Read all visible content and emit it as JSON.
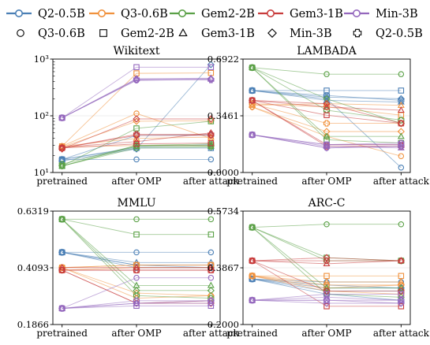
{
  "legend": {
    "series": [
      {
        "name": "Q2-0.5B",
        "color": "#4a7fb5"
      },
      {
        "name": "Q3-0.6B",
        "color": "#f0913c"
      },
      {
        "name": "Gem2-2B",
        "color": "#5aa046"
      },
      {
        "name": "Gem3-1B",
        "color": "#c83c3c"
      },
      {
        "name": "Min-3B",
        "color": "#9467bd"
      }
    ],
    "markers": [
      {
        "name": "Q3-0.6B",
        "shape": "circle"
      },
      {
        "name": "Gem2-2B",
        "shape": "square"
      },
      {
        "name": "Gem3-1B",
        "shape": "triangle"
      },
      {
        "name": "Min-3B",
        "shape": "diamond"
      },
      {
        "name": "Q2-0.5B",
        "shape": "plus"
      }
    ]
  },
  "chart_data": [
    {
      "type": "line",
      "title": "Wikitext",
      "x": [
        "pretrained",
        "after OMP",
        "after attack"
      ],
      "yscale": "log",
      "ylim": [
        10,
        1000
      ],
      "yticks": [
        "10¹",
        "10²",
        "10³"
      ],
      "ytick_values": [
        10,
        100,
        1000
      ],
      "series": [
        {
          "color": "#4a7fb5",
          "values": [
            17,
            17,
            17
          ]
        },
        {
          "color": "#4a7fb5",
          "values": [
            17,
            27,
            27
          ]
        },
        {
          "color": "#4a7fb5",
          "values": [
            17,
            28,
            31
          ]
        },
        {
          "color": "#4a7fb5",
          "values": [
            16,
            26,
            800
          ]
        },
        {
          "color": "#4a7fb5",
          "values": [
            17,
            45,
            46
          ]
        },
        {
          "color": "#f0913c",
          "values": [
            29,
            110,
            40
          ]
        },
        {
          "color": "#f0913c",
          "values": [
            29,
            560,
            570
          ]
        },
        {
          "color": "#f0913c",
          "values": [
            29,
            40,
            42
          ]
        },
        {
          "color": "#f0913c",
          "values": [
            28,
            80,
            82
          ]
        },
        {
          "color": "#f0913c",
          "values": [
            28,
            30,
            30
          ]
        },
        {
          "color": "#5aa046",
          "values": [
            13,
            27,
            28
          ]
        },
        {
          "color": "#5aa046",
          "values": [
            13,
            60,
            80
          ]
        },
        {
          "color": "#5aa046",
          "values": [
            13,
            29,
            29
          ]
        },
        {
          "color": "#5aa046",
          "values": [
            13,
            30,
            30
          ]
        },
        {
          "color": "#5aa046",
          "values": [
            14,
            30,
            32
          ]
        },
        {
          "color": "#c83c3c",
          "values": [
            27,
            45,
            45
          ]
        },
        {
          "color": "#c83c3c",
          "values": [
            27,
            32,
            33
          ]
        },
        {
          "color": "#c83c3c",
          "values": [
            28,
            35,
            50
          ]
        },
        {
          "color": "#c83c3c",
          "values": [
            26,
            88,
            88
          ]
        },
        {
          "color": "#c83c3c",
          "values": [
            27,
            47,
            47
          ]
        },
        {
          "color": "#9467bd",
          "values": [
            92,
            420,
            440
          ]
        },
        {
          "color": "#9467bd",
          "values": [
            92,
            720,
            720
          ]
        },
        {
          "color": "#9467bd",
          "values": [
            92,
            450,
            460
          ]
        },
        {
          "color": "#9467bd",
          "values": [
            92,
            430,
            450
          ]
        },
        {
          "color": "#9467bd",
          "values": [
            92,
            440,
            430
          ]
        }
      ]
    },
    {
      "type": "line",
      "title": "LAMBADA",
      "x": [
        "pretrained",
        "after OMP",
        "after attack"
      ],
      "ylim": [
        0.0,
        0.6922
      ],
      "yticks": [
        "0.0000",
        "0.3461",
        "0.6922"
      ],
      "ytick_values": [
        0.0,
        0.3461,
        0.6922
      ],
      "series": [
        {
          "color": "#4a7fb5",
          "values": [
            0.5,
            0.45,
            0.03
          ]
        },
        {
          "color": "#4a7fb5",
          "values": [
            0.5,
            0.5,
            0.5
          ]
        },
        {
          "color": "#4a7fb5",
          "values": [
            0.5,
            0.44,
            0.43
          ]
        },
        {
          "color": "#4a7fb5",
          "values": [
            0.5,
            0.46,
            0.45
          ]
        },
        {
          "color": "#4a7fb5",
          "values": [
            0.5,
            0.47,
            0.44
          ]
        },
        {
          "color": "#f0913c",
          "values": [
            0.4,
            0.22,
            0.1
          ]
        },
        {
          "color": "#f0913c",
          "values": [
            0.42,
            0.4,
            0.35
          ]
        },
        {
          "color": "#f0913c",
          "values": [
            0.41,
            0.42,
            0.41
          ]
        },
        {
          "color": "#f0913c",
          "values": [
            0.4,
            0.25,
            0.25
          ]
        },
        {
          "color": "#f0913c",
          "values": [
            0.42,
            0.3,
            0.3
          ]
        },
        {
          "color": "#5aa046",
          "values": [
            0.64,
            0.6,
            0.6
          ]
        },
        {
          "color": "#5aa046",
          "values": [
            0.64,
            0.2,
            0.18
          ]
        },
        {
          "color": "#5aa046",
          "values": [
            0.64,
            0.22,
            0.22
          ]
        },
        {
          "color": "#5aa046",
          "values": [
            0.64,
            0.45,
            0.3
          ]
        },
        {
          "color": "#5aa046",
          "values": [
            0.64,
            0.38,
            0.32
          ]
        },
        {
          "color": "#c83c3c",
          "values": [
            0.44,
            0.17,
            0.17
          ]
        },
        {
          "color": "#c83c3c",
          "values": [
            0.44,
            0.35,
            0.3
          ]
        },
        {
          "color": "#c83c3c",
          "values": [
            0.44,
            0.4,
            0.38
          ]
        },
        {
          "color": "#c83c3c",
          "values": [
            0.44,
            0.42,
            0.3
          ]
        },
        {
          "color": "#c83c3c",
          "values": [
            0.44,
            0.16,
            0.16
          ]
        },
        {
          "color": "#9467bd",
          "values": [
            0.23,
            0.15,
            0.16
          ]
        },
        {
          "color": "#9467bd",
          "values": [
            0.23,
            0.17,
            0.17
          ]
        },
        {
          "color": "#9467bd",
          "values": [
            0.23,
            0.16,
            0.15
          ]
        },
        {
          "color": "#9467bd",
          "values": [
            0.23,
            0.15,
            0.16
          ]
        },
        {
          "color": "#9467bd",
          "values": [
            0.23,
            0.17,
            0.18
          ]
        }
      ]
    },
    {
      "type": "line",
      "title": "MMLU",
      "x": [
        "pretrained",
        "after OMP",
        "after attack"
      ],
      "ylim": [
        0.1866,
        0.6319
      ],
      "yticks": [
        "0.1866",
        "0.4093",
        "0.6319"
      ],
      "ytick_values": [
        0.1866,
        0.4093,
        0.6319
      ],
      "series": [
        {
          "color": "#4a7fb5",
          "values": [
            0.47,
            0.47,
            0.47
          ]
        },
        {
          "color": "#4a7fb5",
          "values": [
            0.47,
            0.42,
            0.42
          ]
        },
        {
          "color": "#4a7fb5",
          "values": [
            0.47,
            0.43,
            0.43
          ]
        },
        {
          "color": "#4a7fb5",
          "values": [
            0.47,
            0.42,
            0.41
          ]
        },
        {
          "color": "#4a7fb5",
          "values": [
            0.47,
            0.41,
            0.41
          ]
        },
        {
          "color": "#f0913c",
          "values": [
            0.41,
            0.29,
            0.3
          ]
        },
        {
          "color": "#f0913c",
          "values": [
            0.41,
            0.42,
            0.42
          ]
        },
        {
          "color": "#f0913c",
          "values": [
            0.4,
            0.41,
            0.41
          ]
        },
        {
          "color": "#f0913c",
          "values": [
            0.41,
            0.31,
            0.3
          ]
        },
        {
          "color": "#f0913c",
          "values": [
            0.41,
            0.42,
            0.42
          ]
        },
        {
          "color": "#5aa046",
          "values": [
            0.6,
            0.6,
            0.6
          ]
        },
        {
          "color": "#5aa046",
          "values": [
            0.6,
            0.54,
            0.54
          ]
        },
        {
          "color": "#5aa046",
          "values": [
            0.6,
            0.34,
            0.34
          ]
        },
        {
          "color": "#5aa046",
          "values": [
            0.6,
            0.32,
            0.32
          ]
        },
        {
          "color": "#5aa046",
          "values": [
            0.6,
            0.3,
            0.29
          ]
        },
        {
          "color": "#c83c3c",
          "values": [
            0.4,
            0.27,
            0.28
          ]
        },
        {
          "color": "#c83c3c",
          "values": [
            0.4,
            0.4,
            0.4
          ]
        },
        {
          "color": "#c83c3c",
          "values": [
            0.41,
            0.41,
            0.41
          ]
        },
        {
          "color": "#c83c3c",
          "values": [
            0.4,
            0.27,
            0.27
          ]
        },
        {
          "color": "#c83c3c",
          "values": [
            0.4,
            0.4,
            0.4
          ]
        },
        {
          "color": "#9467bd",
          "values": [
            0.25,
            0.37,
            0.37
          ]
        },
        {
          "color": "#9467bd",
          "values": [
            0.25,
            0.26,
            0.26
          ]
        },
        {
          "color": "#9467bd",
          "values": [
            0.25,
            0.27,
            0.27
          ]
        },
        {
          "color": "#9467bd",
          "values": [
            0.25,
            0.27,
            0.28
          ]
        },
        {
          "color": "#9467bd",
          "values": [
            0.25,
            0.28,
            0.28
          ]
        }
      ]
    },
    {
      "type": "line",
      "title": "ARC-C",
      "x": [
        "pretrained",
        "after OMP",
        "after attack"
      ],
      "ylim": [
        0.2,
        0.5734
      ],
      "yticks": [
        "0.2000",
        "0.3867",
        "0.5734"
      ],
      "ytick_values": [
        0.2,
        0.3867,
        0.5734
      ],
      "series": [
        {
          "color": "#4a7fb5",
          "values": [
            0.35,
            0.34,
            0.34
          ]
        },
        {
          "color": "#4a7fb5",
          "values": [
            0.35,
            0.33,
            0.32
          ]
        },
        {
          "color": "#4a7fb5",
          "values": [
            0.35,
            0.31,
            0.31
          ]
        },
        {
          "color": "#4a7fb5",
          "values": [
            0.35,
            0.32,
            0.32
          ]
        },
        {
          "color": "#4a7fb5",
          "values": [
            0.35,
            0.3,
            0.28
          ]
        },
        {
          "color": "#f0913c",
          "values": [
            0.36,
            0.33,
            0.33
          ]
        },
        {
          "color": "#f0913c",
          "values": [
            0.36,
            0.36,
            0.36
          ]
        },
        {
          "color": "#f0913c",
          "values": [
            0.36,
            0.34,
            0.34
          ]
        },
        {
          "color": "#f0913c",
          "values": [
            0.36,
            0.32,
            0.33
          ]
        },
        {
          "color": "#f0913c",
          "values": [
            0.36,
            0.31,
            0.3
          ]
        },
        {
          "color": "#5aa046",
          "values": [
            0.52,
            0.53,
            0.53
          ]
        },
        {
          "color": "#5aa046",
          "values": [
            0.52,
            0.42,
            0.41
          ]
        },
        {
          "color": "#5aa046",
          "values": [
            0.52,
            0.32,
            0.32
          ]
        },
        {
          "color": "#5aa046",
          "values": [
            0.52,
            0.3,
            0.29
          ]
        },
        {
          "color": "#5aa046",
          "values": [
            0.52,
            0.41,
            0.41
          ]
        },
        {
          "color": "#c83c3c",
          "values": [
            0.41,
            0.41,
            0.41
          ]
        },
        {
          "color": "#c83c3c",
          "values": [
            0.41,
            0.26,
            0.26
          ]
        },
        {
          "color": "#c83c3c",
          "values": [
            0.41,
            0.4,
            0.41
          ]
        },
        {
          "color": "#c83c3c",
          "values": [
            0.41,
            0.42,
            0.41
          ]
        },
        {
          "color": "#c83c3c",
          "values": [
            0.41,
            0.31,
            0.31
          ]
        },
        {
          "color": "#9467bd",
          "values": [
            0.28,
            0.28,
            0.27
          ]
        },
        {
          "color": "#9467bd",
          "values": [
            0.28,
            0.3,
            0.3
          ]
        },
        {
          "color": "#9467bd",
          "values": [
            0.28,
            0.29,
            0.28
          ]
        },
        {
          "color": "#9467bd",
          "values": [
            0.28,
            0.27,
            0.27
          ]
        },
        {
          "color": "#9467bd",
          "values": [
            0.28,
            0.28,
            0.28
          ]
        }
      ]
    }
  ]
}
